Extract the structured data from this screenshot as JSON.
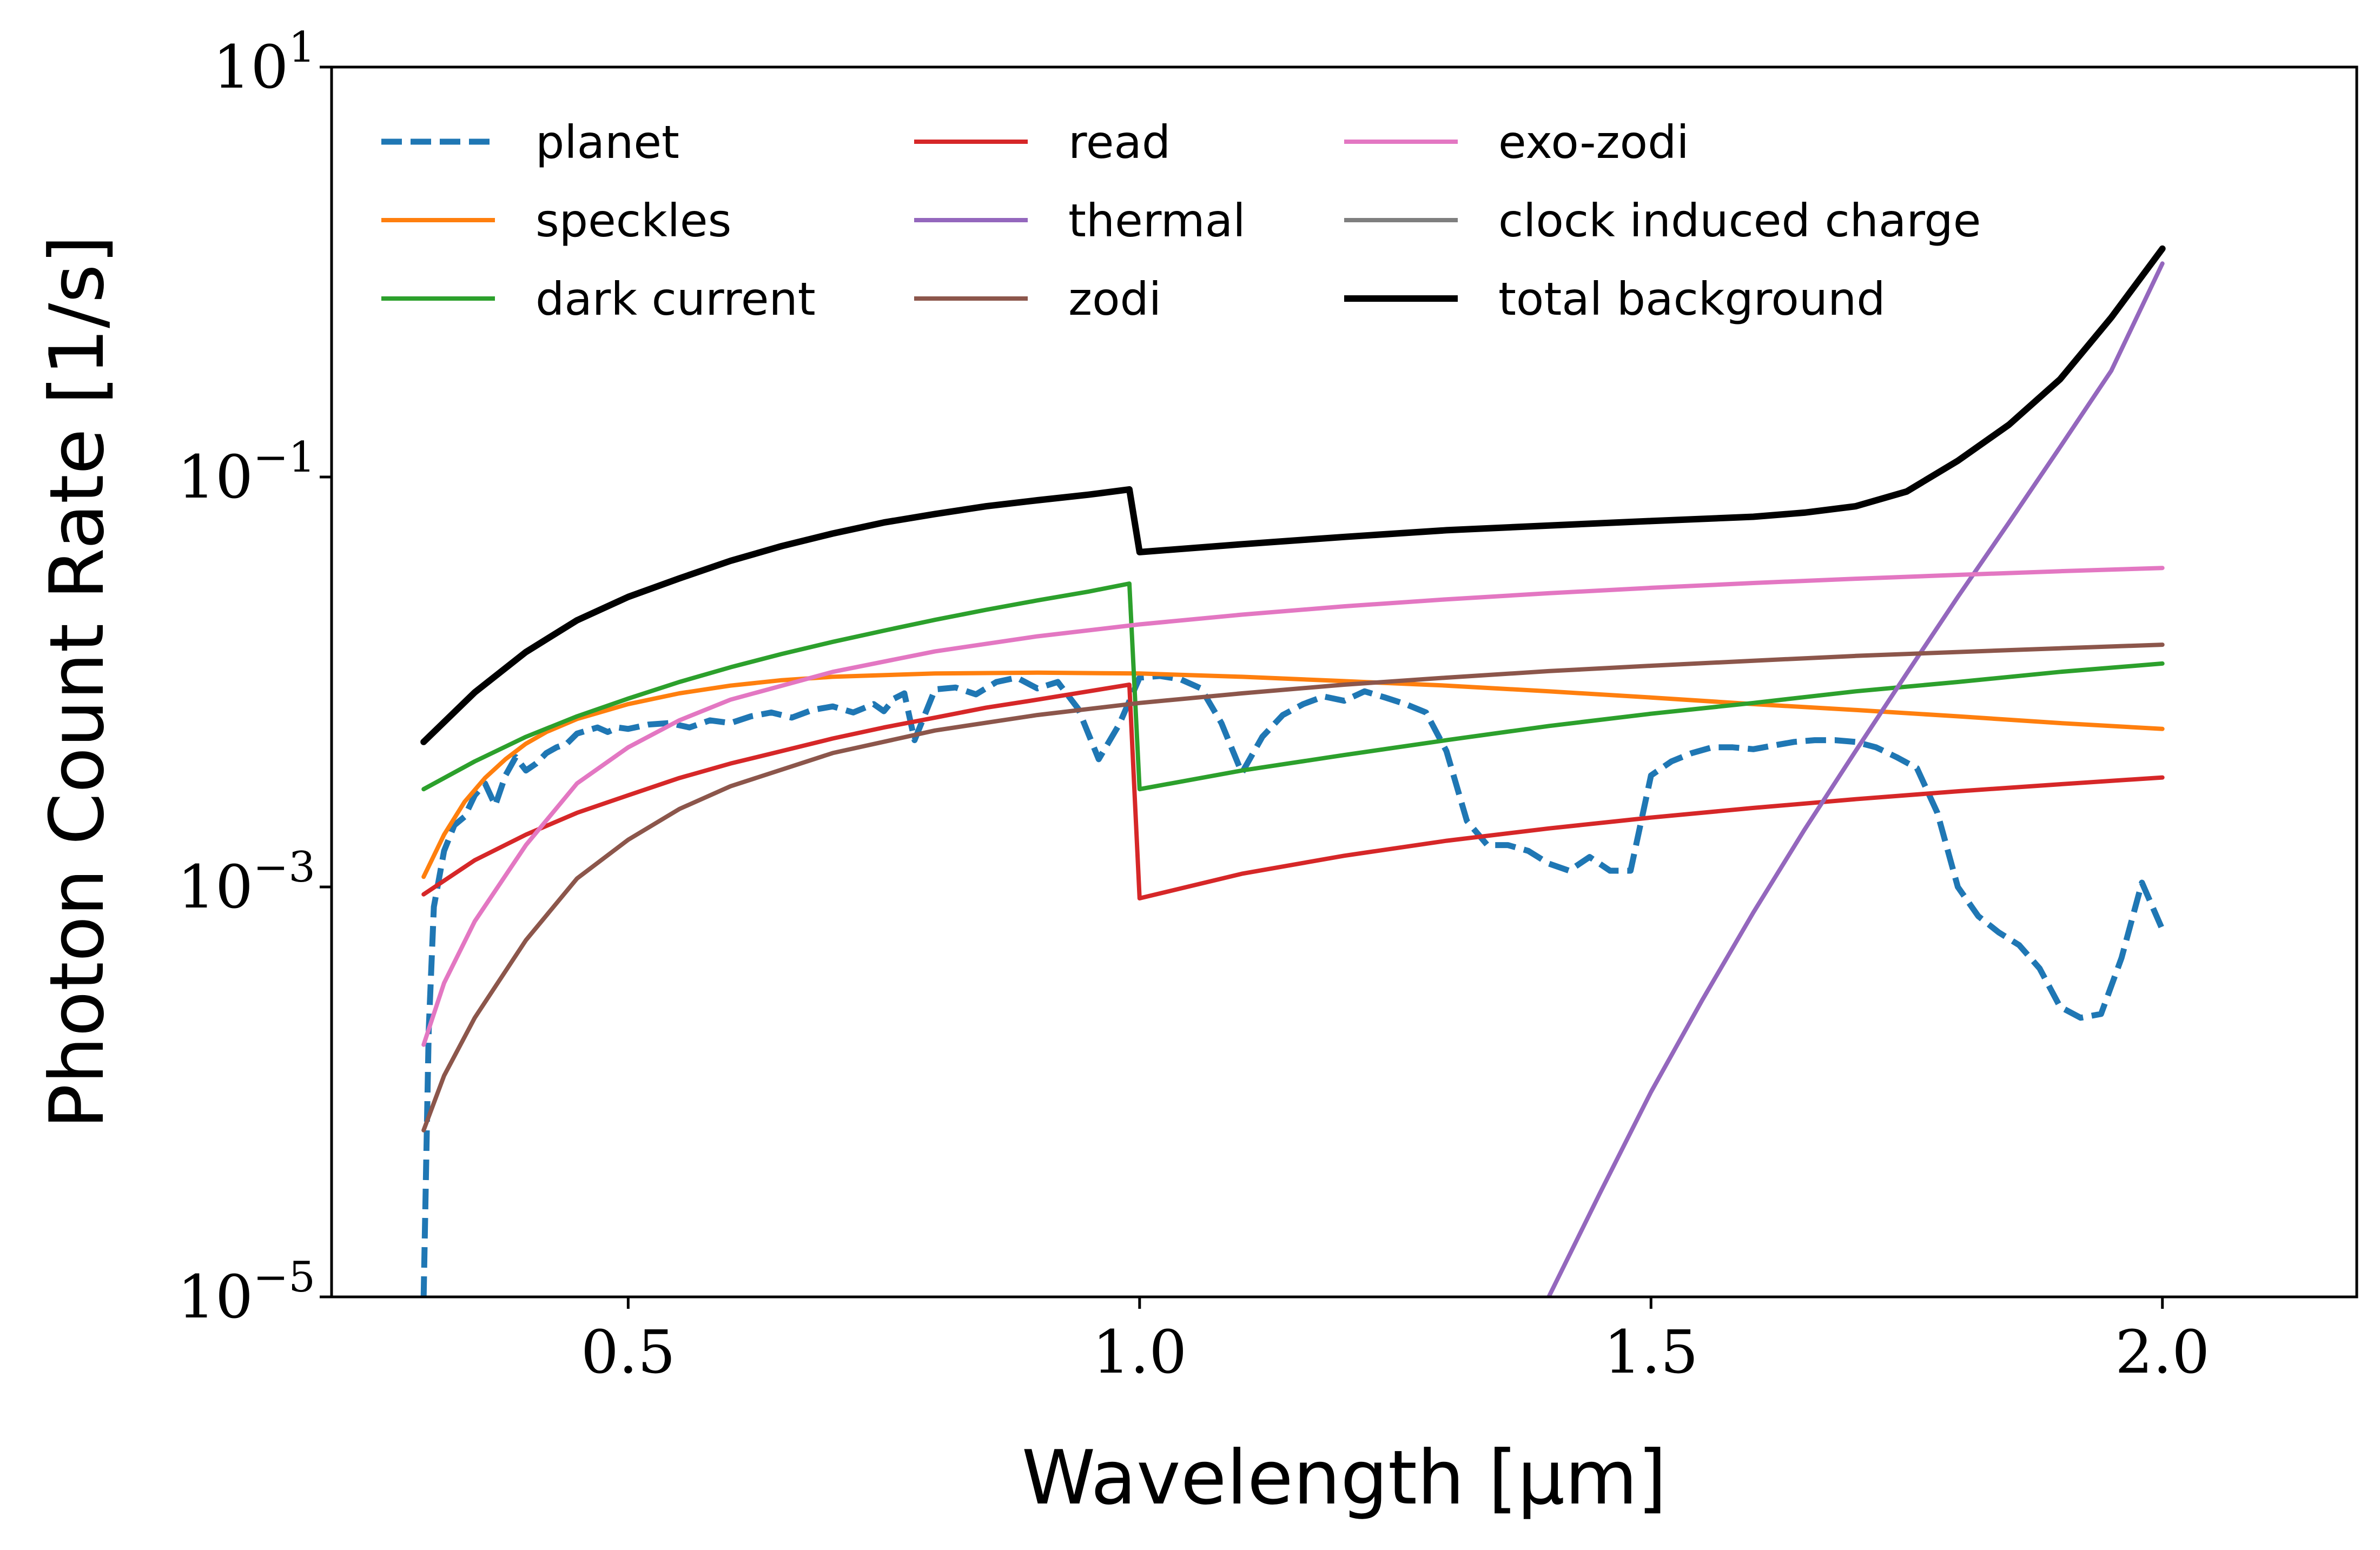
{
  "chart_data": {
    "type": "line",
    "title": "",
    "xlabel": "Wavelength [μm]",
    "ylabel": "Photon Count Rate [1/s]",
    "xlim": [
      0.21,
      2.19
    ],
    "ylim": [
      1e-05,
      10
    ],
    "yscale": "log",
    "grid": false,
    "legend_position": "top-left",
    "legend_columns": 3,
    "x_ticks": [
      0.5,
      1.0,
      1.5,
      2.0
    ],
    "x_tick_labels": [
      "0.5",
      "1.0",
      "1.5",
      "2.0"
    ],
    "y_ticks": [
      1e-05,
      0.001,
      0.1,
      10
    ],
    "y_tick_labels": [
      {
        "base": "10",
        "exp": "−5"
      },
      {
        "base": "10",
        "exp": "−3"
      },
      {
        "base": "10",
        "exp": "−1"
      },
      {
        "base": "10",
        "exp": "1"
      }
    ],
    "series": [
      {
        "name": "planet",
        "color": "#1f77b4",
        "dashed": true,
        "width": 11,
        "x": [
          0.3,
          0.305,
          0.31,
          0.32,
          0.33,
          0.34,
          0.35,
          0.36,
          0.37,
          0.38,
          0.39,
          0.4,
          0.41,
          0.42,
          0.43,
          0.44,
          0.45,
          0.46,
          0.47,
          0.48,
          0.49,
          0.5,
          0.52,
          0.54,
          0.56,
          0.58,
          0.6,
          0.62,
          0.64,
          0.66,
          0.68,
          0.7,
          0.72,
          0.74,
          0.75,
          0.76,
          0.77,
          0.78,
          0.8,
          0.82,
          0.84,
          0.86,
          0.88,
          0.9,
          0.92,
          0.94,
          0.96,
          0.98,
          1.0,
          1.02,
          1.04,
          1.06,
          1.08,
          1.1,
          1.12,
          1.14,
          1.16,
          1.18,
          1.2,
          1.22,
          1.24,
          1.26,
          1.28,
          1.3,
          1.32,
          1.34,
          1.36,
          1.38,
          1.4,
          1.42,
          1.44,
          1.46,
          1.48,
          1.5,
          1.52,
          1.54,
          1.56,
          1.58,
          1.6,
          1.62,
          1.64,
          1.66,
          1.68,
          1.7,
          1.72,
          1.74,
          1.76,
          1.78,
          1.8,
          1.82,
          1.84,
          1.86,
          1.88,
          1.9,
          1.92,
          1.94,
          1.96,
          1.98,
          2.0
        ],
        "y": [
          1e-05,
          0.0002,
          0.0008,
          0.0015,
          0.002,
          0.0022,
          0.0028,
          0.0032,
          0.0025,
          0.0035,
          0.0043,
          0.0037,
          0.004,
          0.0045,
          0.0048,
          0.005,
          0.0056,
          0.0058,
          0.006,
          0.0057,
          0.006,
          0.0059,
          0.0062,
          0.0063,
          0.006,
          0.0065,
          0.0063,
          0.0068,
          0.0071,
          0.0067,
          0.0073,
          0.0076,
          0.0071,
          0.0078,
          0.0072,
          0.0083,
          0.0088,
          0.0052,
          0.0092,
          0.0094,
          0.0087,
          0.01,
          0.0105,
          0.0093,
          0.01,
          0.0074,
          0.0042,
          0.0062,
          0.0105,
          0.0107,
          0.0103,
          0.0093,
          0.0063,
          0.0036,
          0.0054,
          0.0069,
          0.0078,
          0.0085,
          0.0081,
          0.009,
          0.0084,
          0.0078,
          0.0071,
          0.0046,
          0.0021,
          0.0016,
          0.0016,
          0.0015,
          0.0013,
          0.0012,
          0.0014,
          0.0012,
          0.0012,
          0.0035,
          0.0041,
          0.0045,
          0.0048,
          0.0048,
          0.0047,
          0.0049,
          0.0051,
          0.0052,
          0.0052,
          0.0051,
          0.0048,
          0.0043,
          0.0038,
          0.0023,
          0.001,
          0.00072,
          0.0006,
          0.00052,
          0.0004,
          0.00026,
          0.00023,
          0.00024,
          0.00045,
          0.00105,
          0.00062
        ]
      },
      {
        "name": "speckles",
        "color": "#ff7f0e",
        "dashed": false,
        "width": 8,
        "x": [
          0.3,
          0.32,
          0.34,
          0.36,
          0.38,
          0.4,
          0.42,
          0.45,
          0.5,
          0.55,
          0.6,
          0.65,
          0.7,
          0.8,
          0.9,
          1.0,
          1.1,
          1.2,
          1.3,
          1.4,
          1.5,
          1.6,
          1.7,
          1.8,
          1.9,
          2.0
        ],
        "y": [
          0.00112,
          0.0018,
          0.0026,
          0.0034,
          0.0042,
          0.005,
          0.0057,
          0.0066,
          0.0078,
          0.0088,
          0.0096,
          0.0102,
          0.0106,
          0.011,
          0.0111,
          0.011,
          0.0106,
          0.0101,
          0.0096,
          0.009,
          0.0084,
          0.0078,
          0.0073,
          0.0068,
          0.0063,
          0.0059
        ]
      },
      {
        "name": "dark current",
        "color": "#2ca02c",
        "dashed": false,
        "width": 8,
        "x": [
          0.3,
          0.35,
          0.4,
          0.45,
          0.5,
          0.55,
          0.6,
          0.65,
          0.7,
          0.75,
          0.8,
          0.85,
          0.9,
          0.95,
          0.99,
          1.0,
          1.1,
          1.2,
          1.3,
          1.4,
          1.5,
          1.6,
          1.7,
          1.8,
          1.9,
          2.0
        ],
        "y": [
          0.003,
          0.0041,
          0.0054,
          0.0068,
          0.0083,
          0.01,
          0.0118,
          0.0137,
          0.0157,
          0.0178,
          0.0201,
          0.0225,
          0.025,
          0.0276,
          0.0302,
          0.003,
          0.0037,
          0.0044,
          0.0052,
          0.0061,
          0.007,
          0.0079,
          0.009,
          0.01,
          0.0112,
          0.0123
        ]
      },
      {
        "name": "read",
        "color": "#d62728",
        "dashed": false,
        "width": 8,
        "x": [
          0.3,
          0.35,
          0.4,
          0.45,
          0.5,
          0.55,
          0.6,
          0.65,
          0.7,
          0.75,
          0.8,
          0.85,
          0.9,
          0.95,
          0.99,
          1.0,
          1.1,
          1.2,
          1.3,
          1.4,
          1.5,
          1.6,
          1.7,
          1.8,
          1.9,
          2.0
        ],
        "y": [
          0.00092,
          0.00135,
          0.0018,
          0.0023,
          0.0028,
          0.0034,
          0.004,
          0.0046,
          0.0053,
          0.006,
          0.0067,
          0.0075,
          0.0082,
          0.009,
          0.0097,
          0.00088,
          0.00116,
          0.00142,
          0.00168,
          0.00193,
          0.00218,
          0.00243,
          0.00268,
          0.00293,
          0.00317,
          0.00342
        ]
      },
      {
        "name": "thermal",
        "color": "#9467bd",
        "dashed": false,
        "width": 8,
        "x": [
          1.4,
          1.45,
          1.5,
          1.55,
          1.6,
          1.65,
          1.7,
          1.75,
          1.8,
          1.85,
          1.9,
          1.95,
          2.0
        ],
        "y": [
          1e-05,
          3.2e-05,
          0.0001,
          0.00028,
          0.00075,
          0.0019,
          0.0046,
          0.011,
          0.026,
          0.06,
          0.14,
          0.33,
          1.1
        ]
      },
      {
        "name": "zodi",
        "color": "#8c564b",
        "dashed": false,
        "width": 8,
        "x": [
          0.3,
          0.32,
          0.35,
          0.4,
          0.45,
          0.5,
          0.55,
          0.6,
          0.7,
          0.8,
          0.9,
          1.0,
          1.1,
          1.2,
          1.3,
          1.4,
          1.5,
          1.6,
          1.7,
          1.8,
          1.9,
          2.0
        ],
        "y": [
          6.5e-05,
          0.00012,
          0.00023,
          0.00055,
          0.0011,
          0.0017,
          0.0024,
          0.0031,
          0.0045,
          0.0058,
          0.0069,
          0.0079,
          0.0088,
          0.0097,
          0.0105,
          0.0113,
          0.012,
          0.0127,
          0.0134,
          0.014,
          0.0146,
          0.0152
        ]
      },
      {
        "name": "exo-zodi",
        "color": "#e377c2",
        "dashed": false,
        "width": 8,
        "x": [
          0.3,
          0.32,
          0.35,
          0.4,
          0.45,
          0.5,
          0.55,
          0.6,
          0.7,
          0.8,
          0.9,
          1.0,
          1.1,
          1.2,
          1.3,
          1.4,
          1.5,
          1.6,
          1.7,
          1.8,
          1.9,
          2.0
        ],
        "y": [
          0.00017,
          0.00034,
          0.00068,
          0.0016,
          0.0032,
          0.0048,
          0.0065,
          0.0082,
          0.0112,
          0.0141,
          0.0167,
          0.0191,
          0.0213,
          0.0234,
          0.0253,
          0.0271,
          0.0288,
          0.0304,
          0.0319,
          0.0333,
          0.0347,
          0.036
        ]
      },
      {
        "name": "clock induced charge",
        "color": "#7f7f7f",
        "dashed": false,
        "width": 8,
        "x": [],
        "y": []
      },
      {
        "name": "total background",
        "color": "#000000",
        "dashed": false,
        "width": 12,
        "x": [
          0.3,
          0.35,
          0.4,
          0.45,
          0.5,
          0.55,
          0.6,
          0.65,
          0.7,
          0.75,
          0.8,
          0.85,
          0.9,
          0.95,
          0.99,
          1.0,
          1.1,
          1.2,
          1.3,
          1.4,
          1.5,
          1.6,
          1.65,
          1.7,
          1.75,
          1.8,
          1.85,
          1.9,
          1.95,
          2.0
        ],
        "y": [
          0.0051,
          0.0089,
          0.014,
          0.02,
          0.026,
          0.032,
          0.039,
          0.046,
          0.053,
          0.06,
          0.066,
          0.072,
          0.077,
          0.082,
          0.087,
          0.043,
          0.047,
          0.051,
          0.055,
          0.058,
          0.061,
          0.064,
          0.067,
          0.072,
          0.085,
          0.12,
          0.18,
          0.3,
          0.6,
          1.3
        ]
      }
    ]
  }
}
